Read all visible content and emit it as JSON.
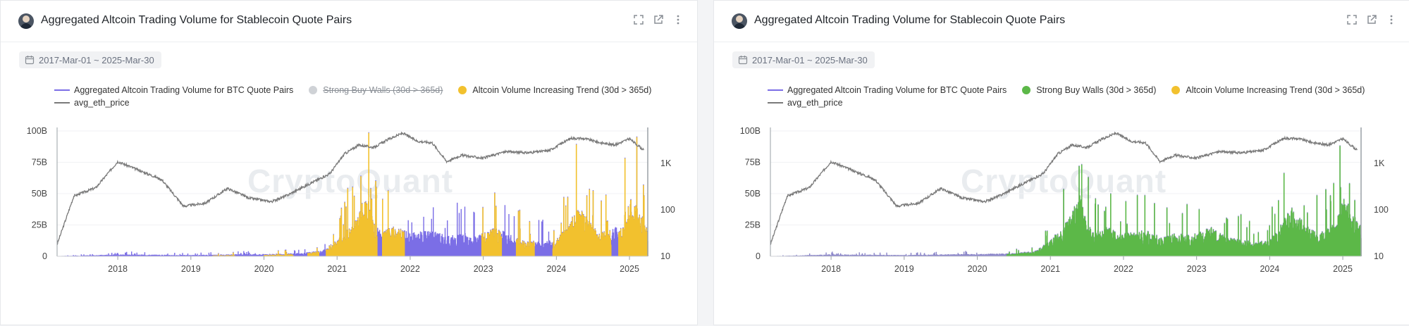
{
  "panels": [
    {
      "title": "Aggregated Altcoin Trading Volume for Stablecoin Quote Pairs",
      "date_range": "2017-Mar-01 ~ 2025-Mar-30",
      "legend": [
        {
          "label": "Aggregated Altcoin Trading Volume for BTC Quote Pairs",
          "color": "#7b6ee6",
          "kind": "line",
          "active": true
        },
        {
          "label": "Strong Buy Walls (30d > 365d)",
          "color": "#cfd2d6",
          "kind": "dot",
          "active": false
        },
        {
          "label": "Altcoin Volume Increasing Trend (30d > 365d)",
          "color": "#f2c12e",
          "kind": "dot",
          "active": true
        },
        {
          "label": "avg_eth_price",
          "color": "#7a7a7a",
          "kind": "line",
          "active": true
        }
      ],
      "watermark": "CryptoQuant"
    },
    {
      "title": "Aggregated Altcoin Trading Volume for Stablecoin Quote Pairs",
      "date_range": "2017-Mar-01 ~ 2025-Mar-30",
      "legend": [
        {
          "label": "Aggregated Altcoin Trading Volume for BTC Quote Pairs",
          "color": "#7b6ee6",
          "kind": "line",
          "active": true
        },
        {
          "label": "Strong Buy Walls (30d > 365d)",
          "color": "#5cb848",
          "kind": "dot",
          "active": true
        },
        {
          "label": "Altcoin Volume Increasing Trend (30d > 365d)",
          "color": "#f2c12e",
          "kind": "dot",
          "active": true
        },
        {
          "label": "avg_eth_price",
          "color": "#7a7a7a",
          "kind": "line",
          "active": true
        }
      ],
      "watermark": "CryptoQuant"
    }
  ],
  "chart_data": [
    {
      "type": "area",
      "title": "Aggregated Altcoin Trading Volume for Stablecoin Quote Pairs",
      "x_range": [
        2017.17,
        2025.25
      ],
      "x_ticks": [
        "2018",
        "2019",
        "2020",
        "2021",
        "2022",
        "2023",
        "2024",
        "2025"
      ],
      "y_left": {
        "range": [
          0,
          100
        ],
        "unit": "B",
        "ticks": [
          "0",
          "25B",
          "50B",
          "75B",
          "100B"
        ]
      },
      "y_right": {
        "scale": "log",
        "range": [
          10,
          5000
        ],
        "ticks": [
          "10",
          "100",
          "1K"
        ]
      },
      "highlight": "Altcoin Volume Increasing Trend (30d > 365d)",
      "highlight_color": "#f2c12e",
      "volume": {
        "x": [
          2017.2,
          2017.5,
          2018.0,
          2018.5,
          2019.0,
          2019.5,
          2020.0,
          2020.5,
          2020.8,
          2021.0,
          2021.25,
          2021.4,
          2021.5,
          2021.6,
          2021.8,
          2022.0,
          2022.3,
          2022.5,
          2022.7,
          2022.9,
          2023.0,
          2023.2,
          2023.4,
          2023.6,
          2023.8,
          2024.0,
          2024.2,
          2024.3,
          2024.5,
          2024.7,
          2024.9,
          2025.0,
          2025.1,
          2025.25
        ],
        "values": [
          0.2,
          0.5,
          1.2,
          1.0,
          0.8,
          1.2,
          1.4,
          2.0,
          3.5,
          10,
          22,
          38,
          20,
          15,
          18,
          14,
          16,
          12,
          14,
          13,
          14,
          18,
          12,
          10,
          9,
          10,
          22,
          30,
          18,
          15,
          20,
          35,
          30,
          18
        ]
      },
      "highlight_periods": [
        [
          2019.3,
          2019.6
        ],
        [
          2020.0,
          2020.4
        ],
        [
          2020.6,
          2020.75
        ],
        [
          2020.85,
          2021.55
        ],
        [
          2021.62,
          2021.92
        ],
        [
          2022.98,
          2023.25
        ],
        [
          2023.45,
          2023.7
        ],
        [
          2023.95,
          2024.75
        ],
        [
          2024.85,
          2025.25
        ]
      ],
      "eth_price": {
        "x": [
          2017.17,
          2017.4,
          2017.7,
          2018.0,
          2018.3,
          2018.6,
          2018.9,
          2019.2,
          2019.5,
          2019.8,
          2020.1,
          2020.3,
          2020.6,
          2020.9,
          2021.1,
          2021.3,
          2021.5,
          2021.7,
          2021.9,
          2022.1,
          2022.3,
          2022.5,
          2022.7,
          2023.0,
          2023.3,
          2023.6,
          2023.9,
          2024.2,
          2024.4,
          2024.6,
          2024.8,
          2025.0,
          2025.2
        ],
        "values": [
          18,
          200,
          300,
          1100,
          700,
          450,
          120,
          140,
          290,
          180,
          150,
          200,
          350,
          600,
          1600,
          2500,
          2200,
          3300,
          4500,
          3000,
          2800,
          1100,
          1500,
          1300,
          1800,
          1700,
          1900,
          3500,
          3400,
          2800,
          2500,
          3400,
          1900
        ]
      }
    },
    {
      "type": "area",
      "title": "Aggregated Altcoin Trading Volume for Stablecoin Quote Pairs",
      "x_range": [
        2017.17,
        2025.25
      ],
      "x_ticks": [
        "2018",
        "2019",
        "2020",
        "2021",
        "2022",
        "2023",
        "2024",
        "2025"
      ],
      "y_left": {
        "range": [
          0,
          100
        ],
        "unit": "B",
        "ticks": [
          "0",
          "25B",
          "50B",
          "75B",
          "100B"
        ]
      },
      "y_right": {
        "scale": "log",
        "range": [
          10,
          5000
        ],
        "ticks": [
          "10",
          "100",
          "1K"
        ]
      },
      "highlight": "Strong Buy Walls (30d > 365d)",
      "highlight_color": "#5cb848",
      "volume": {
        "x": [
          2017.2,
          2017.5,
          2018.0,
          2018.5,
          2019.0,
          2019.5,
          2020.0,
          2020.5,
          2020.8,
          2021.0,
          2021.25,
          2021.4,
          2021.5,
          2021.6,
          2021.8,
          2022.0,
          2022.3,
          2022.5,
          2022.7,
          2022.9,
          2023.0,
          2023.2,
          2023.4,
          2023.6,
          2023.8,
          2024.0,
          2024.2,
          2024.3,
          2024.5,
          2024.7,
          2024.9,
          2025.0,
          2025.1,
          2025.25
        ],
        "values": [
          0.2,
          0.5,
          1.2,
          1.0,
          0.8,
          1.2,
          1.4,
          2.0,
          3.5,
          10,
          22,
          38,
          20,
          15,
          18,
          14,
          16,
          12,
          14,
          13,
          14,
          18,
          12,
          10,
          9,
          10,
          22,
          30,
          18,
          15,
          20,
          35,
          30,
          18
        ]
      },
      "highlight_periods": [
        [
          2020.4,
          2025.25
        ]
      ],
      "eth_price": {
        "x": [
          2017.17,
          2017.4,
          2017.7,
          2018.0,
          2018.3,
          2018.6,
          2018.9,
          2019.2,
          2019.5,
          2019.8,
          2020.1,
          2020.3,
          2020.6,
          2020.9,
          2021.1,
          2021.3,
          2021.5,
          2021.7,
          2021.9,
          2022.1,
          2022.3,
          2022.5,
          2022.7,
          2023.0,
          2023.3,
          2023.6,
          2023.9,
          2024.2,
          2024.4,
          2024.6,
          2024.8,
          2025.0,
          2025.2
        ],
        "values": [
          18,
          200,
          300,
          1100,
          700,
          450,
          120,
          140,
          290,
          180,
          150,
          200,
          350,
          600,
          1600,
          2500,
          2200,
          3300,
          4500,
          3000,
          2800,
          1100,
          1500,
          1300,
          1800,
          1700,
          1900,
          3500,
          3400,
          2800,
          2500,
          3400,
          1900
        ]
      }
    }
  ]
}
